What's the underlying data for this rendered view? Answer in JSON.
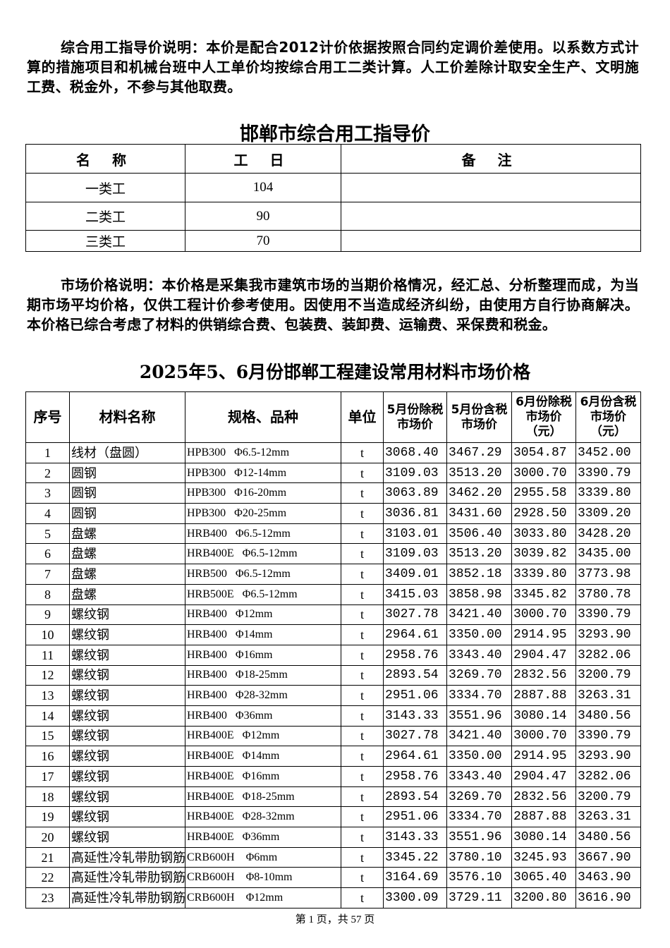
{
  "intro1": "综合用工指导价说明：本价是配合2012计价依据按照合同约定调价差使用。以系数方式计算的措施项目和机械台班中人工单价均按综合用工二类计算。人工价差除计取安全生产、文明施工费、税金外，不参与其他取费。",
  "wage_title": "邯郸市综合用工指导价",
  "wage_table": {
    "headers": [
      "名 称",
      "工 日",
      "备 注"
    ],
    "rows": [
      [
        "一类工",
        "104",
        ""
      ],
      [
        "二类工",
        "90",
        ""
      ],
      [
        "三类工",
        "70",
        ""
      ]
    ]
  },
  "intro2": "市场价格说明：本价格是采集我市建筑市场的当期价格情况，经汇总、分析整理而成，为当期市场平均价格，仅供工程计价参考使用。因使用不当造成经济纠纷，由使用方自行协商解决。本价格已综合考虑了材料的供销综合费、包装费、装卸费、运输费、采保费和税金。",
  "price_title": "2025年5、6月份邯郸工程建设常用材料市场价格",
  "price_table": {
    "headers": [
      "序号",
      "材料名称",
      "规格、品种",
      "单位",
      "5月份除税 市场价",
      "5月份含税 市场价",
      "6月份除税市场价（元）",
      "6月份含税市场价（元）"
    ],
    "rows": [
      [
        "1",
        "线材（盘圆）",
        "HPB300   Φ6.5-12mm",
        "t",
        "3068.40",
        "3467.29",
        "3054.87",
        "3452.00"
      ],
      [
        "2",
        "圆钢",
        "HPB300   Φ12-14mm",
        "t",
        "3109.03",
        "3513.20",
        "3000.70",
        "3390.79"
      ],
      [
        "3",
        "圆钢",
        "HPB300   Φ16-20mm",
        "t",
        "3063.89",
        "3462.20",
        "2955.58",
        "3339.80"
      ],
      [
        "4",
        "圆钢",
        "HPB300   Φ20-25mm",
        "t",
        "3036.81",
        "3431.60",
        "2928.50",
        "3309.20"
      ],
      [
        "5",
        "盘螺",
        "HRB400   Φ6.5-12mm",
        "t",
        "3103.01",
        "3506.40",
        "3033.80",
        "3428.20"
      ],
      [
        "6",
        "盘螺",
        "HRB400E   Φ6.5-12mm",
        "t",
        "3109.03",
        "3513.20",
        "3039.82",
        "3435.00"
      ],
      [
        "7",
        "盘螺",
        "HRB500   Φ6.5-12mm",
        "t",
        "3409.01",
        "3852.18",
        "3339.80",
        "3773.98"
      ],
      [
        "8",
        "盘螺",
        "HRB500E   Φ6.5-12mm",
        "t",
        "3415.03",
        "3858.98",
        "3345.82",
        "3780.78"
      ],
      [
        "9",
        "螺纹钢",
        "HRB400   Φ12mm",
        "t",
        "3027.78",
        "3421.40",
        "3000.70",
        "3390.79"
      ],
      [
        "10",
        "螺纹钢",
        "HRB400   Φ14mm",
        "t",
        "2964.61",
        "3350.00",
        "2914.95",
        "3293.90"
      ],
      [
        "11",
        "螺纹钢",
        "HRB400   Φ16mm",
        "t",
        "2958.76",
        "3343.40",
        "2904.47",
        "3282.06"
      ],
      [
        "12",
        "螺纹钢",
        "HRB400   Φ18-25mm",
        "t",
        "2893.54",
        "3269.70",
        "2832.56",
        "3200.79"
      ],
      [
        "13",
        "螺纹钢",
        "HRB400   Φ28-32mm",
        "t",
        "2951.06",
        "3334.70",
        "2887.88",
        "3263.31"
      ],
      [
        "14",
        "螺纹钢",
        "HRB400   Φ36mm",
        "t",
        "3143.33",
        "3551.96",
        "3080.14",
        "3480.56"
      ],
      [
        "15",
        "螺纹钢",
        "HRB400E   Φ12mm",
        "t",
        "3027.78",
        "3421.40",
        "3000.70",
        "3390.79"
      ],
      [
        "16",
        "螺纹钢",
        "HRB400E   Φ14mm",
        "t",
        "2964.61",
        "3350.00",
        "2914.95",
        "3293.90"
      ],
      [
        "17",
        "螺纹钢",
        "HRB400E   Φ16mm",
        "t",
        "2958.76",
        "3343.40",
        "2904.47",
        "3282.06"
      ],
      [
        "18",
        "螺纹钢",
        "HRB400E   Φ18-25mm",
        "t",
        "2893.54",
        "3269.70",
        "2832.56",
        "3200.79"
      ],
      [
        "19",
        "螺纹钢",
        "HRB400E   Φ28-32mm",
        "t",
        "2951.06",
        "3334.70",
        "2887.88",
        "3263.31"
      ],
      [
        "20",
        "螺纹钢",
        "HRB400E   Φ36mm",
        "t",
        "3143.33",
        "3551.96",
        "3080.14",
        "3480.56"
      ],
      [
        "21",
        "高延性冷轧带肋钢筋",
        "CRB600H    Φ6mm",
        "t",
        "3345.22",
        "3780.10",
        "3245.93",
        "3667.90"
      ],
      [
        "22",
        "高延性冷轧带肋钢筋",
        "CRB600H    Φ8-10mm",
        "t",
        "3164.69",
        "3576.10",
        "3065.40",
        "3463.90"
      ],
      [
        "23",
        "高延性冷轧带肋钢筋",
        "CRB600H    Φ12mm",
        "t",
        "3300.09",
        "3729.11",
        "3200.80",
        "3616.90"
      ]
    ]
  },
  "footer": "第 1 页，共 57 页"
}
